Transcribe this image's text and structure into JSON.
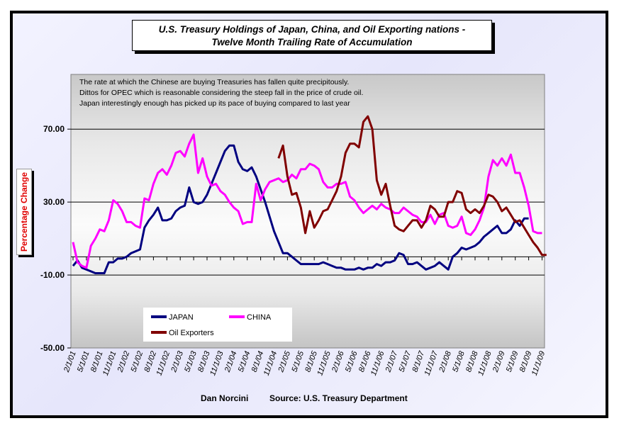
{
  "chart_data": {
    "type": "line",
    "title": "U.S. Treasury Holdings of Japan, China, and Oil Exporting nations  -",
    "subtitle": "Twelve Month Trailing Rate of Accumulation",
    "ylabel": "Percentage Change",
    "xlabel": "",
    "ylim": [
      -50,
      100
    ],
    "yticks": [
      "70.00",
      "30.00",
      "-10.00",
      "-50.00"
    ],
    "ytick_values": [
      70,
      30,
      -10,
      -50
    ],
    "grid": true,
    "legend_placement": "bottom-left",
    "annotation": [
      "The rate at which the Chinese are buying Treasuries has fallen quite precipitously.",
      "Dittos for OPEC which is reasonable considering the steep fall in the price of crude oil.",
      "Japan interestingly enough has picked up its pace of buying compared to last year"
    ],
    "x_start": "2/1/01",
    "x_step": "monthly",
    "xticks": [
      "2/1/01",
      "5/1/01",
      "8/1/01",
      "11/1/01",
      "2/1/02",
      "5/1/02",
      "8/1/02",
      "11/1/02",
      "2/1/03",
      "5/1/03",
      "8/1/03",
      "11/1/03",
      "2/1/04",
      "5/1/04",
      "8/1/04",
      "11/1/04",
      "2/1/05",
      "5/1/05",
      "8/1/05",
      "11/1/05",
      "2/1/06",
      "5/1/06",
      "8/1/06",
      "11/1/06",
      "2/1/07",
      "5/1/07",
      "8/1/07",
      "11/1/07",
      "2/1/08",
      "5/1/08",
      "8/1/08",
      "11/1/08",
      "2/1/09",
      "5/1/09",
      "8/1/09",
      "11/1/09"
    ],
    "series": [
      {
        "name": "JAPAN",
        "color": "#000080",
        "start_index": 0,
        "values": [
          -5,
          -2,
          -6,
          -7,
          -8,
          -9,
          -9,
          -9,
          -3,
          -3,
          -1,
          -1,
          0,
          2,
          3,
          4,
          16,
          20,
          23,
          27,
          20,
          20,
          21,
          25,
          27,
          28,
          38,
          30,
          29,
          30,
          34,
          40,
          46,
          52,
          58,
          61,
          61,
          52,
          48,
          47,
          49,
          44,
          37,
          30,
          22,
          14,
          8,
          2,
          2,
          0,
          -2,
          -4,
          -4,
          -4,
          -4,
          -4,
          -3,
          -4,
          -5,
          -6,
          -6,
          -7,
          -7,
          -7,
          -6,
          -7,
          -6,
          -6,
          -4,
          -5,
          -3,
          -3,
          -2,
          2,
          1,
          -4,
          -4,
          -3,
          -5,
          -7,
          -6,
          -5,
          -3,
          -5,
          -7,
          0,
          2,
          5,
          4,
          5,
          6,
          8,
          11,
          13,
          15,
          17,
          13,
          13,
          15,
          20,
          17,
          21,
          21
        ]
      },
      {
        "name": "CHINA",
        "color": "#ff00ff",
        "start_index": 0,
        "values": [
          8,
          -3,
          -5,
          -6,
          6,
          10,
          15,
          14,
          20,
          31,
          29,
          25,
          19,
          19,
          17,
          16,
          32,
          31,
          40,
          46,
          48,
          45,
          50,
          57,
          58,
          55,
          62,
          67,
          46,
          54,
          44,
          39,
          40,
          36,
          34,
          30,
          27,
          25,
          18,
          19,
          19,
          40,
          31,
          37,
          41,
          42,
          43,
          41,
          42,
          45,
          43,
          48,
          48,
          51,
          50,
          48,
          41,
          38,
          38,
          40,
          40,
          41,
          33,
          31,
          27,
          24,
          26,
          28,
          26,
          29,
          27,
          26,
          24,
          24,
          27,
          25,
          23,
          22,
          19,
          19,
          23,
          18,
          23,
          24,
          17,
          16,
          17,
          22,
          13,
          12,
          15,
          20,
          27,
          44,
          53,
          50,
          54,
          50,
          56,
          46,
          46,
          38,
          28,
          14,
          13,
          13
        ]
      },
      {
        "name": "Oil Exporters",
        "color": "#800000",
        "start_index": 46,
        "values": [
          54,
          61,
          44,
          34,
          35,
          27,
          13,
          25,
          16,
          20,
          25,
          26,
          31,
          36,
          44,
          57,
          62,
          62,
          60,
          74,
          77,
          70,
          42,
          34,
          40,
          28,
          17,
          15,
          14,
          17,
          20,
          20,
          16,
          20,
          28,
          26,
          22,
          22,
          30,
          30,
          36,
          35,
          26,
          24,
          26,
          24,
          28,
          34,
          33,
          30,
          25,
          27,
          23,
          19,
          20,
          16,
          12,
          8,
          5,
          1,
          1
        ]
      }
    ]
  },
  "footer": {
    "author": "Dan Norcini",
    "source": "Source: U.S. Treasury Department"
  }
}
